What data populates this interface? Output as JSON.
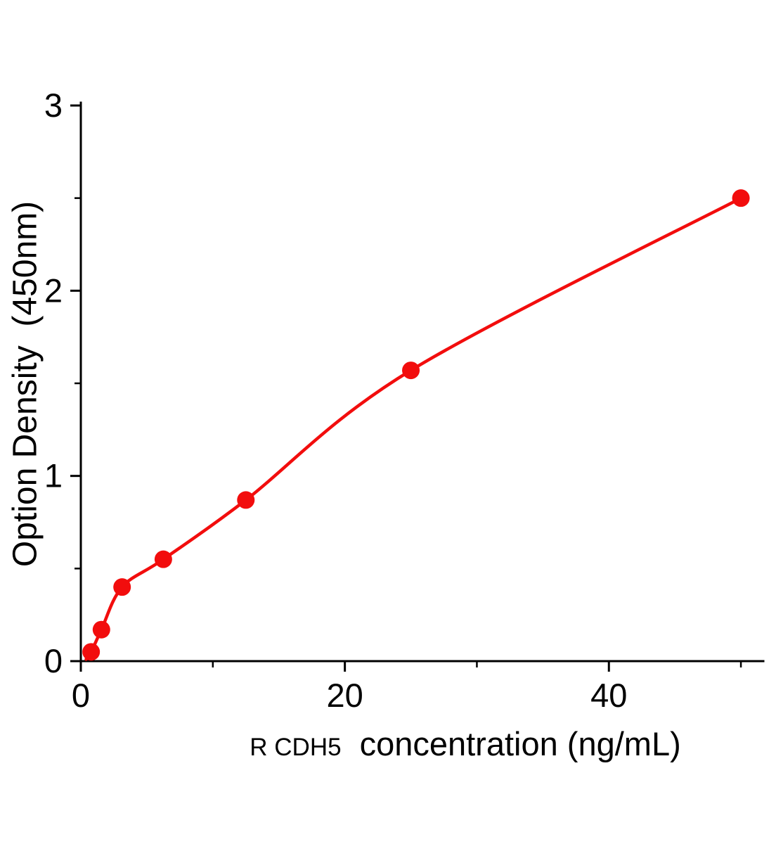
{
  "chart_data": {
    "type": "scatter",
    "title": "",
    "xlabel_prefix": "R CDH5",
    "xlabel": "concentration (ng/mL)",
    "ylabel": "Option Density  (450nm)",
    "x": [
      0.78,
      1.56,
      3.125,
      6.25,
      12.5,
      25,
      50
    ],
    "y": [
      0.05,
      0.17,
      0.4,
      0.55,
      0.87,
      1.57,
      2.5
    ],
    "xlim": [
      0,
      51.7
    ],
    "ylim": [
      0,
      3
    ],
    "xticks": {
      "major": [
        0,
        20,
        40
      ],
      "minor": [
        10,
        30,
        50
      ]
    },
    "yticks": {
      "major": [
        0,
        1,
        2,
        3
      ],
      "minor": [
        0.5,
        1.5,
        2.5
      ]
    },
    "curve_start": {
      "x": 0.4,
      "y": 0.01
    },
    "grid": false,
    "legend": null,
    "line_color": "#f20d0d",
    "marker_color": "#f20d0d",
    "axis_color": "#000000",
    "background": "#ffffff"
  }
}
